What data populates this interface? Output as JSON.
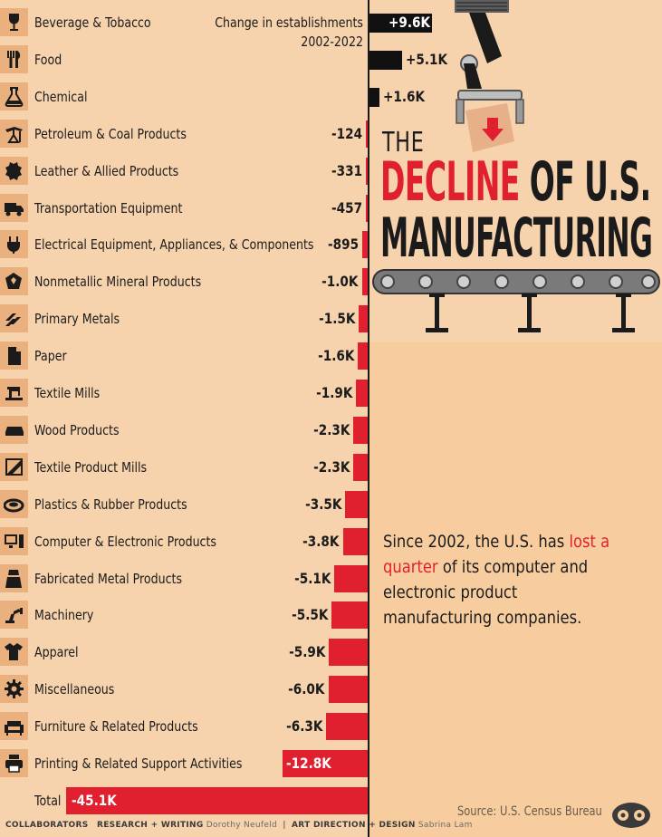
{
  "header_note": {
    "line1": "Change in establishments",
    "line2": "2002-2022"
  },
  "title": {
    "the": "THE",
    "decline": "DECLINE",
    "of_us": "OF U.S.",
    "manufacturing": "MANUFACTURING"
  },
  "summary": {
    "part1": "Since 2002, the U.S. has ",
    "highlight": "lost a quarter",
    "part2": " of its computer and electronic product manufacturing companies."
  },
  "source": "Source: U.S. Census Bureau",
  "credits": {
    "collaborators": "COLLABORATORS",
    "research_label": "RESEARCH + WRITING",
    "research_name": "Dorothy Neufeld",
    "art_label": "ART DIRECTION + DESIGN",
    "art_name": "Sabrina Lam"
  },
  "colors": {
    "negative": "#e0202e",
    "positive": "#111111",
    "background": "#f6d3ad",
    "icon_bg": "#eab07e"
  },
  "chart_data": {
    "type": "bar",
    "title": "Change in establishments 2002-2022",
    "orientation": "horizontal",
    "categories": [
      "Beverage & Tobacco",
      "Food",
      "Chemical",
      "Petroleum & Coal Products",
      "Leather & Allied Products",
      "Transportation Equipment",
      "Electrical Equipment, Appliances, & Components",
      "Nonmetallic Mineral Products",
      "Primary Metals",
      "Paper",
      "Textile Mills",
      "Wood Products",
      "Textile Product Mills",
      "Plastics & Rubber Products",
      "Computer & Electronic Products",
      "Fabricated Metal Products",
      "Machinery",
      "Apparel",
      "Miscellaneous",
      "Furniture & Related Products",
      "Printing & Related Support Activities"
    ],
    "values": [
      9600,
      5100,
      1600,
      -124,
      -331,
      -457,
      -895,
      -1000,
      -1500,
      -1600,
      -1900,
      -2300,
      -2300,
      -3500,
      -3800,
      -5100,
      -5500,
      -5900,
      -6000,
      -6300,
      -12800
    ],
    "labels": [
      "+9.6K",
      "+5.1K",
      "+1.6K",
      "-124",
      "-331",
      "-457",
      "-895",
      "-1.0K",
      "-1.5K",
      "-1.6K",
      "-1.9K",
      "-2.3K",
      "-2.3K",
      "-3.5K",
      "-3.8K",
      "-5.1K",
      "-5.5K",
      "-5.9K",
      "-6.0K",
      "-6.3K",
      "-12.8K"
    ],
    "icons": [
      "wine-glass-icon",
      "utensils-icon",
      "flask-icon",
      "oil-pump-icon",
      "leather-hide-icon",
      "truck-icon",
      "power-plug-icon",
      "mineral-icon",
      "metal-bars-icon",
      "paper-icon",
      "sewing-machine-icon",
      "wood-plank-icon",
      "fabric-roll-icon",
      "rubber-ring-icon",
      "computer-icon",
      "metal-part-icon",
      "robot-arm-icon",
      "shirt-icon",
      "gear-icon",
      "sofa-icon",
      "printer-icon"
    ],
    "total": {
      "label": "Total",
      "value": -45100,
      "display": "-45.1K"
    },
    "xlabel": "",
    "ylabel": ""
  }
}
